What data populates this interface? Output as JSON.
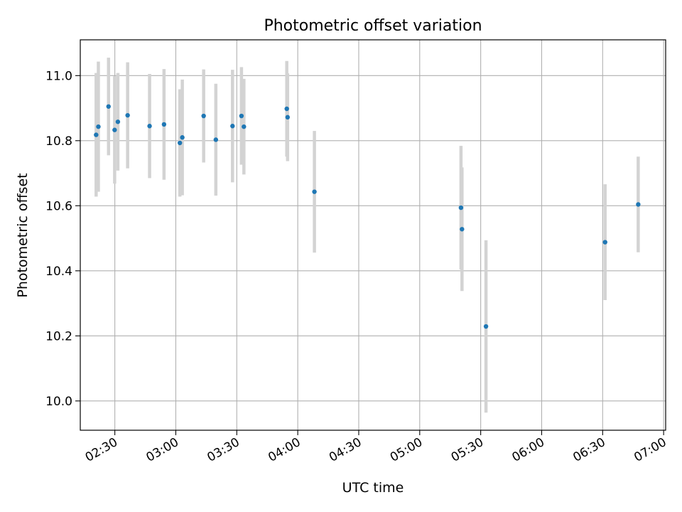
{
  "chart_data": {
    "type": "scatter",
    "title": "Photometric offset variation",
    "xlabel": "UTC time",
    "ylabel": "Photometric offset",
    "x_axis": "time (UTC)",
    "xlim": [
      "02:13",
      "07:01"
    ],
    "ylim": [
      9.91,
      11.11
    ],
    "xticks": [
      "02:30",
      "03:00",
      "03:30",
      "04:00",
      "04:30",
      "05:00",
      "05:30",
      "06:00",
      "06:30",
      "07:00"
    ],
    "yticks": [
      "10.0",
      "10.2",
      "10.4",
      "10.6",
      "10.8",
      "11.0"
    ],
    "grid": true,
    "legend": "none",
    "point_color": "#1f77b4",
    "errorbar_color": "#d3d3d3",
    "points": [
      {
        "x": "02:20.8",
        "y": 10.818,
        "yerr": 0.19
      },
      {
        "x": "02:21.9",
        "y": 10.843,
        "yerr": 0.2
      },
      {
        "x": "02:26.9",
        "y": 10.905,
        "yerr": 0.15
      },
      {
        "x": "02:29.9",
        "y": 10.833,
        "yerr": 0.165
      },
      {
        "x": "02:31.5",
        "y": 10.858,
        "yerr": 0.15
      },
      {
        "x": "02:36.3",
        "y": 10.878,
        "yerr": 0.163
      },
      {
        "x": "02:47.1",
        "y": 10.845,
        "yerr": 0.16
      },
      {
        "x": "02:54.2",
        "y": 10.85,
        "yerr": 0.17
      },
      {
        "x": "03:02.0",
        "y": 10.793,
        "yerr": 0.165
      },
      {
        "x": "03:03.2",
        "y": 10.81,
        "yerr": 0.178
      },
      {
        "x": "03:13.7",
        "y": 10.876,
        "yerr": 0.143
      },
      {
        "x": "03:19.7",
        "y": 10.803,
        "yerr": 0.172
      },
      {
        "x": "03:27.9",
        "y": 10.845,
        "yerr": 0.173
      },
      {
        "x": "03:32.3",
        "y": 10.876,
        "yerr": 0.15
      },
      {
        "x": "03:33.5",
        "y": 10.843,
        "yerr": 0.147
      },
      {
        "x": "03:54.6",
        "y": 10.898,
        "yerr": 0.147
      },
      {
        "x": "03:55.0",
        "y": 10.872,
        "yerr": 0.135
      },
      {
        "x": "04:08.2",
        "y": 10.643,
        "yerr": 0.187
      },
      {
        "x": "05:20.3",
        "y": 10.594,
        "yerr": 0.19
      },
      {
        "x": "05:20.8",
        "y": 10.528,
        "yerr": 0.19
      },
      {
        "x": "05:32.6",
        "y": 10.229,
        "yerr": 0.265
      },
      {
        "x": "06:31.2",
        "y": 10.488,
        "yerr": 0.178
      },
      {
        "x": "06:47.5",
        "y": 10.604,
        "yerr": 0.147
      }
    ]
  }
}
